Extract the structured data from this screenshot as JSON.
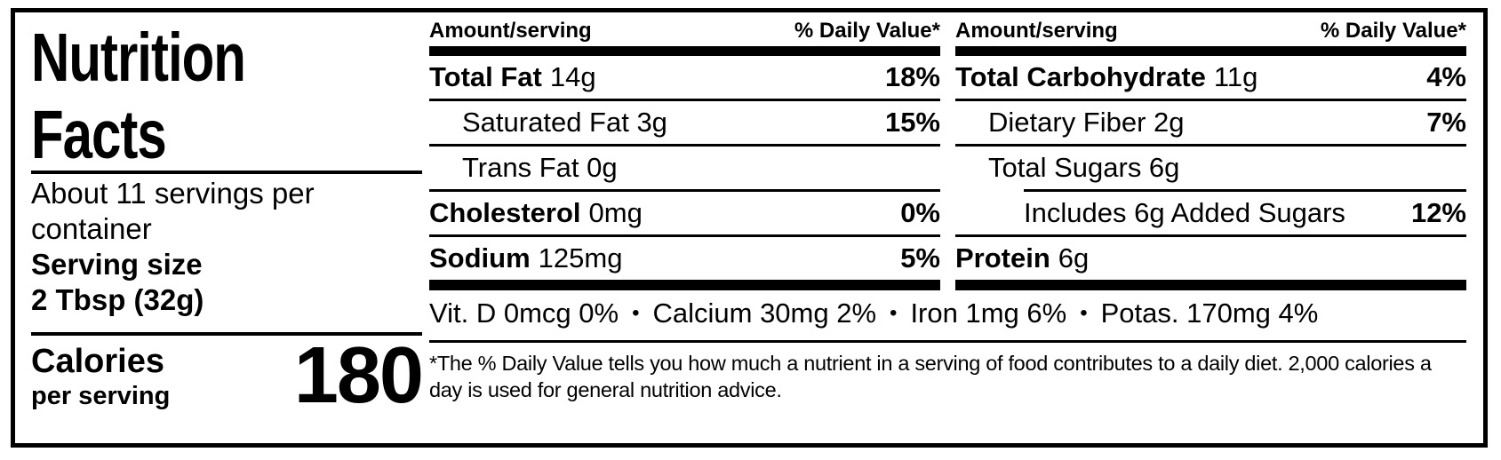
{
  "colors": {
    "ink": "#000000",
    "paper": "#ffffff"
  },
  "title": {
    "line1": "Nutrition",
    "line2": "Facts"
  },
  "serving": {
    "servings_per_container": "About 11 servings per container",
    "serving_size_label": "Serving size",
    "serving_size_value": "2 Tbsp (32g)"
  },
  "calories": {
    "label": "Calories",
    "sublabel": "per serving",
    "value": "180"
  },
  "columns": [
    {
      "header_amount": "Amount/serving",
      "header_dv": "% Daily Value*",
      "rows": [
        {
          "bold": "Total Fat",
          "rest": "14g",
          "dv": "18%"
        },
        {
          "bold": "",
          "rest": "Saturated Fat 3g",
          "dv": "15%"
        },
        {
          "bold": "",
          "rest": "Trans Fat 0g",
          "dv": ""
        },
        {
          "bold": "Cholesterol",
          "rest": "0mg",
          "dv": "0%"
        },
        {
          "bold": "Sodium",
          "rest": "125mg",
          "dv": "5%"
        }
      ]
    },
    {
      "header_amount": "Amount/serving",
      "header_dv": "% Daily Value*",
      "rows": [
        {
          "bold": "Total Carbohydrate",
          "rest": "11g",
          "dv": "4%"
        },
        {
          "bold": "",
          "rest": "Dietary Fiber 2g",
          "dv": "7%"
        },
        {
          "bold": "",
          "rest": "Total Sugars 6g",
          "dv": ""
        },
        {
          "bold": "",
          "rest": "Includes 6g Added Sugars",
          "dv": "12%"
        },
        {
          "bold": "Protein",
          "rest": "6g",
          "dv": ""
        }
      ]
    }
  ],
  "micronutrients": {
    "items": [
      "Vit. D 0mcg 0%",
      "Calcium 30mg 2%",
      "Iron 1mg 6%",
      "Potas. 170mg 4%"
    ],
    "separator": "•"
  },
  "footnote": "*The % Daily Value tells you how much a nutrient in a serving of food contributes to a daily diet. 2,000 calories a day is used for general nutrition advice."
}
